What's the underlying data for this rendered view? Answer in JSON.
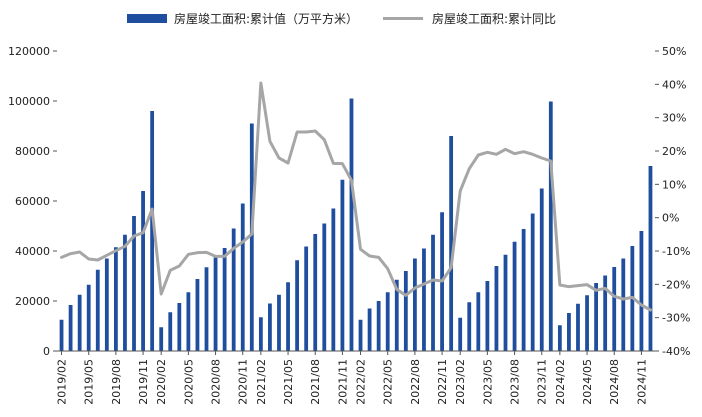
{
  "chart_data": {
    "type": "bar+line",
    "legend": [
      {
        "label": "房屋竣工面积:累计值（万平方米）",
        "kind": "bar",
        "color": "#1f4e9e"
      },
      {
        "label": "房屋竣工面积:累计同比",
        "kind": "line",
        "color": "#a6a6a6"
      }
    ],
    "legend_position": "top",
    "grid": false,
    "left_axis": {
      "min": 0,
      "max": 120000,
      "ticks": [
        "0",
        "20000",
        "40000",
        "60000",
        "80000",
        "100000",
        "120000"
      ]
    },
    "right_axis": {
      "min": -40,
      "max": 50,
      "ticks": [
        "-40%",
        "-30%",
        "-20%",
        "-10%",
        "0%",
        "10%",
        "20%",
        "30%",
        "40%",
        "50%"
      ]
    },
    "x_tick_labels": [
      "2019/02",
      "2019/05",
      "2019/08",
      "2019/11",
      "2020/02",
      "2020/05",
      "2020/08",
      "2020/11",
      "2021/02",
      "2021/05",
      "2021/08",
      "2021/11",
      "2022/02",
      "2022/05",
      "2022/08",
      "2022/11",
      "2023/02",
      "2023/05",
      "2023/08",
      "2023/11",
      "2024/02",
      "2024/05",
      "2024/08",
      "2024/11"
    ],
    "categories": [
      "2019/02",
      "2019/03",
      "2019/04",
      "2019/05",
      "2019/06",
      "2019/07",
      "2019/08",
      "2019/09",
      "2019/10",
      "2019/11",
      "2019/12",
      "2020/02",
      "2020/03",
      "2020/04",
      "2020/05",
      "2020/06",
      "2020/07",
      "2020/08",
      "2020/09",
      "2020/10",
      "2020/11",
      "2020/12",
      "2021/02",
      "2021/03",
      "2021/04",
      "2021/05",
      "2021/06",
      "2021/07",
      "2021/08",
      "2021/09",
      "2021/10",
      "2021/11",
      "2021/12",
      "2022/02",
      "2022/03",
      "2022/04",
      "2022/05",
      "2022/06",
      "2022/07",
      "2022/08",
      "2022/09",
      "2022/10",
      "2022/11",
      "2022/12",
      "2023/02",
      "2023/03",
      "2023/04",
      "2023/05",
      "2023/06",
      "2023/07",
      "2023/08",
      "2023/09",
      "2023/10",
      "2023/11",
      "2023/12",
      "2024/02",
      "2024/03",
      "2024/04",
      "2024/05",
      "2024/06",
      "2024/07",
      "2024/08",
      "2024/09",
      "2024/10",
      "2024/11",
      "2024/12"
    ],
    "series": [
      {
        "name": "房屋竣工面积:累计值（万平方米）",
        "axis": "left",
        "values": [
          12500,
          18400,
          22500,
          26500,
          32500,
          37000,
          41500,
          46500,
          54000,
          64000,
          96000,
          9500,
          15500,
          19200,
          23500,
          28800,
          33500,
          37500,
          41200,
          49000,
          59000,
          91000,
          13500,
          19000,
          22500,
          27500,
          36300,
          41800,
          46800,
          51000,
          57000,
          68500,
          101000,
          12500,
          17000,
          20000,
          23500,
          28500,
          32000,
          37000,
          41000,
          46500,
          55500,
          86000,
          13300,
          19500,
          23500,
          28000,
          34000,
          38500,
          43700,
          48800,
          55000,
          65000,
          99800,
          10300,
          15200,
          18900,
          22300,
          27200,
          30200,
          33600,
          37000,
          42000,
          48000,
          74000
        ]
      },
      {
        "name": "房屋竣工面积:累计同比",
        "axis": "right",
        "values": [
          -11.9,
          -10.8,
          -10.3,
          -12.4,
          -12.7,
          -11.3,
          -9.9,
          -8.6,
          -5.5,
          -4.5,
          2.6,
          -22.9,
          -15.8,
          -14.5,
          -11.0,
          -10.5,
          -10.4,
          -11.6,
          -11.6,
          -9.2,
          -7.3,
          -4.9,
          40.4,
          22.9,
          17.9,
          16.4,
          25.7,
          25.7,
          26.0,
          23.4,
          16.3,
          16.2,
          11.2,
          -9.5,
          -11.5,
          -11.9,
          -15.3,
          -21.5,
          -23.3,
          -21.1,
          -19.9,
          -18.7,
          -19.0,
          -15.0,
          8.0,
          14.7,
          18.8,
          19.6,
          19.0,
          20.5,
          19.2,
          19.8,
          19.0,
          17.9,
          17.0,
          -20.2,
          -20.7,
          -20.4,
          -20.1,
          -21.8,
          -21.2,
          -23.6,
          -24.4,
          -23.9,
          -26.2,
          -27.7
        ]
      }
    ]
  }
}
